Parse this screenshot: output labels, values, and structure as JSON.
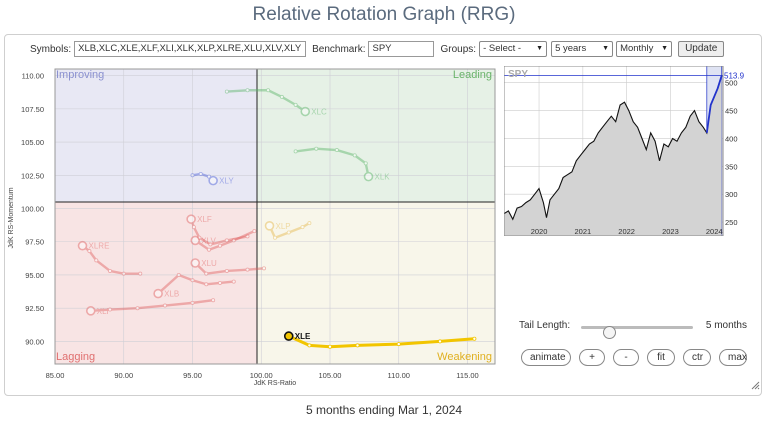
{
  "page": {
    "title": "Relative Rotation Graph (RRG)",
    "footer": "5 months ending Mar 1, 2024"
  },
  "controls": {
    "symbols_label": "Symbols:",
    "symbols_value": "XLB,XLC,XLE,XLF,XLI,XLK,XLP,XLRE,XLU,XLV,XLY",
    "benchmark_label": "Benchmark:",
    "benchmark_value": "SPY",
    "groups_label": "Groups:",
    "groups_value": "- Select -",
    "period_value": "5 years",
    "frequency_value": "Monthly",
    "update_label": "Update"
  },
  "tail": {
    "label": "Tail Length:",
    "value": "5 months",
    "level_fraction": 0.2
  },
  "buttons": {
    "animate": "animate",
    "plus": "+",
    "minus": "-",
    "fit": "fit",
    "ctr": "ctr",
    "max": "max"
  },
  "colors": {
    "improving": "#e8e8f4",
    "leading": "#e6f1e6",
    "weakening": "#f8f6ea",
    "lagging": "#f8e4e4",
    "highlight": "#f2c500",
    "benchmark_line": "#0000cc"
  },
  "chart_data": [
    {
      "type": "scatter",
      "xlabel": "JdK RS-Ratio",
      "ylabel": "JdK RS-Momentum",
      "xlim": [
        85,
        117
      ],
      "ylim": [
        88.3,
        110.5
      ],
      "xticks": [
        85,
        90,
        95,
        100,
        105,
        110,
        115
      ],
      "xtick_labels": [
        "85.00",
        "90.00",
        "95.00",
        "100.00",
        "105.00",
        "110.00",
        "115.00"
      ],
      "yticks": [
        90,
        92.5,
        95,
        97.5,
        100,
        102.5,
        105,
        107.5,
        110
      ],
      "ytick_labels": [
        "90.00",
        "92.50",
        "95.00",
        "97.50",
        "100.00",
        "102.50",
        "105.00",
        "107.50",
        "110.00"
      ],
      "grid": true,
      "center": [
        100,
        100
      ],
      "quadrants": [
        "Improving",
        "Leading",
        "Weakening",
        "Lagging"
      ],
      "series": [
        {
          "name": "XLC",
          "color": "#5ab468",
          "highlight": false,
          "x": [
            97.5,
            99.0,
            100.5,
            101.5,
            102.5,
            103.2
          ],
          "y": [
            108.8,
            108.9,
            108.9,
            108.4,
            107.8,
            107.3
          ]
        },
        {
          "name": "XLK",
          "color": "#5ab468",
          "highlight": false,
          "x": [
            102.5,
            104.0,
            105.5,
            106.8,
            107.6,
            107.8
          ],
          "y": [
            104.3,
            104.5,
            104.4,
            104.0,
            103.4,
            102.4
          ]
        },
        {
          "name": "XLY",
          "color": "#4a5ed8",
          "highlight": false,
          "x": [
            95.0,
            95.6,
            96.2,
            96.5
          ],
          "y": [
            102.5,
            102.6,
            102.4,
            102.1
          ]
        },
        {
          "name": "XLP",
          "color": "#e6b84a",
          "highlight": false,
          "x": [
            103.5,
            103.0,
            102.0,
            101.0,
            100.6
          ],
          "y": [
            98.9,
            98.6,
            98.2,
            97.8,
            98.7
          ]
        },
        {
          "name": "XLE",
          "color": "#f2c500",
          "highlight": true,
          "x": [
            115.5,
            113.0,
            110.0,
            107.0,
            105.0,
            103.5,
            102.0
          ],
          "y": [
            90.2,
            90.0,
            89.8,
            89.7,
            89.6,
            89.7,
            90.4
          ]
        },
        {
          "name": "XLF",
          "color": "#e06060",
          "highlight": false,
          "x": [
            99.0,
            97.5,
            96.3,
            95.5,
            95.1,
            94.9
          ],
          "y": [
            97.9,
            97.6,
            97.3,
            97.8,
            98.6,
            99.2
          ]
        },
        {
          "name": "XLRE",
          "color": "#e06060",
          "highlight": false,
          "x": [
            91.2,
            90.0,
            89.0,
            88.0,
            87.5,
            87.0
          ],
          "y": [
            95.1,
            95.1,
            95.3,
            96.1,
            96.8,
            97.2
          ]
        },
        {
          "name": "XLU",
          "color": "#e06060",
          "highlight": false,
          "x": [
            100.2,
            99.0,
            97.5,
            96.0,
            95.2
          ],
          "y": [
            95.5,
            95.4,
            95.3,
            95.1,
            95.9
          ]
        },
        {
          "name": "XLV",
          "color": "#e06060",
          "highlight": false,
          "x": [
            99.5,
            98.0,
            97.0,
            96.2,
            95.2
          ],
          "y": [
            98.3,
            97.6,
            97.2,
            96.9,
            97.6
          ]
        },
        {
          "name": "XLB",
          "color": "#e06060",
          "highlight": false,
          "x": [
            98.0,
            97.0,
            96.0,
            95.0,
            94.0,
            92.5
          ],
          "y": [
            94.5,
            94.4,
            94.3,
            94.6,
            95.0,
            93.6
          ]
        },
        {
          "name": "XLI",
          "color": "#e06060",
          "highlight": false,
          "x": [
            96.5,
            95.0,
            93.0,
            91.0,
            89.0,
            87.6
          ],
          "y": [
            93.1,
            92.9,
            92.7,
            92.5,
            92.4,
            92.3
          ]
        }
      ]
    },
    {
      "type": "area",
      "title": "SPY",
      "last_value_label": "513.99",
      "xticks": [
        2020,
        2021,
        2022,
        2023,
        2024
      ],
      "yticks": [
        250,
        300,
        350,
        400,
        450,
        500
      ],
      "xlim": [
        2019.2,
        2024.2
      ],
      "ylim": [
        225,
        530
      ],
      "highlight_window": [
        2023.83,
        2024.17
      ],
      "x": [
        2019.2,
        2019.3,
        2019.4,
        2019.5,
        2019.6,
        2019.7,
        2019.8,
        2019.9,
        2020.0,
        2020.1,
        2020.17,
        2020.25,
        2020.35,
        2020.45,
        2020.55,
        2020.65,
        2020.75,
        2020.85,
        2020.95,
        2021.05,
        2021.15,
        2021.25,
        2021.35,
        2021.45,
        2021.55,
        2021.65,
        2021.75,
        2021.85,
        2021.95,
        2022.05,
        2022.15,
        2022.25,
        2022.35,
        2022.45,
        2022.55,
        2022.65,
        2022.75,
        2022.85,
        2022.95,
        2023.05,
        2023.15,
        2023.25,
        2023.35,
        2023.45,
        2023.55,
        2023.65,
        2023.75,
        2023.83,
        2023.92,
        2024.0,
        2024.08,
        2024.17
      ],
      "y": [
        265,
        270,
        255,
        275,
        278,
        285,
        290,
        300,
        310,
        285,
        258,
        290,
        300,
        310,
        330,
        335,
        340,
        360,
        370,
        380,
        390,
        395,
        410,
        420,
        430,
        440,
        430,
        460,
        465,
        450,
        430,
        420,
        400,
        380,
        410,
        395,
        360,
        390,
        385,
        400,
        395,
        410,
        420,
        440,
        450,
        430,
        420,
        410,
        460,
        475,
        490,
        513
      ]
    }
  ]
}
